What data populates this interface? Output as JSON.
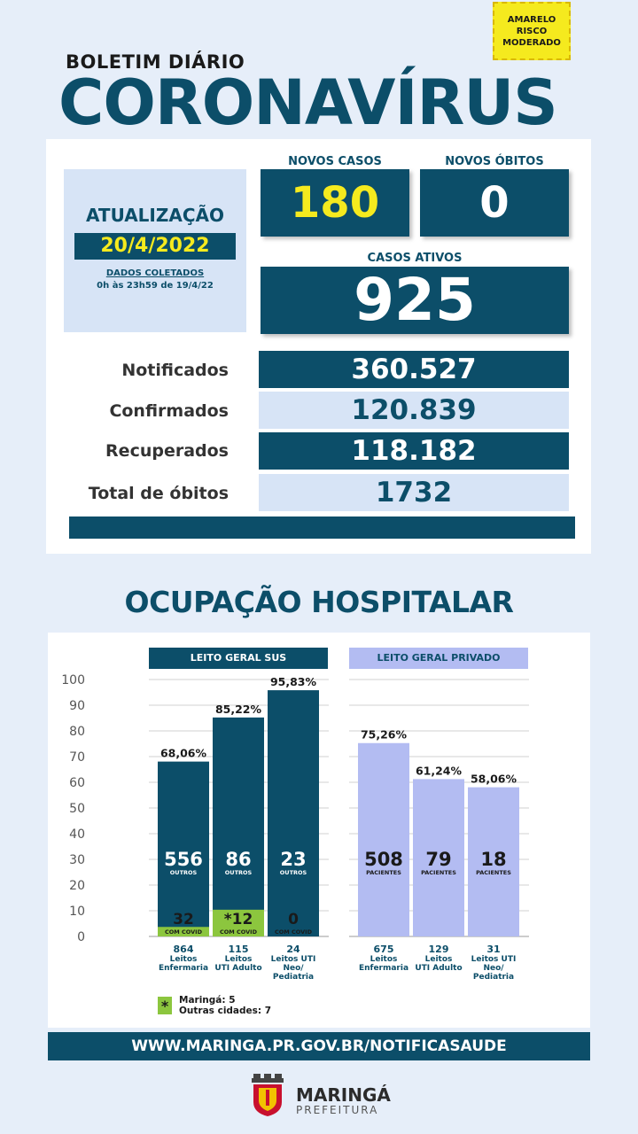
{
  "risk": {
    "line1": "AMARELO",
    "line2": "RISCO",
    "line3": "MODERADO",
    "color": "#f5ea1e"
  },
  "header": {
    "boletim": "BOLETIM DIÁRIO",
    "title": "CORONAVÍRUS"
  },
  "update": {
    "label": "ATUALIZAÇÃO",
    "date": "20/4/2022",
    "collected": "DADOS COLETADOS",
    "collected_period": "0h às 23h59 de 19/4/22"
  },
  "new_cases": {
    "label": "NOVOS CASOS",
    "value": "180"
  },
  "new_deaths": {
    "label": "NOVOS ÓBITOS",
    "value": "0"
  },
  "active": {
    "label": "CASOS ATIVOS",
    "value": "925"
  },
  "stats": [
    {
      "label": "Notificados",
      "value": "360.527"
    },
    {
      "label": "Confirmados",
      "value": "120.839"
    },
    {
      "label": "Recuperados",
      "value": "118.182"
    },
    {
      "label": "Total de óbitos",
      "value": "1732"
    }
  ],
  "hospital_title": "OCUPAÇÃO HOSPITALAR",
  "sus_header": "LEITO GERAL SUS",
  "priv_header": "LEITO GERAL PRIVADO",
  "legend": {
    "symbol": "*",
    "line1": "Maringá: 5",
    "line2": "Outras cidades: 7"
  },
  "footer": {
    "url": "WWW.MARINGA.PR.GOV.BR/NOTIFICASAUDE",
    "logo_name": "MARINGÁ",
    "logo_sub": "PREFEITURA"
  },
  "colors": {
    "primary": "#0c4e69",
    "accent": "#f5ea1e",
    "covid": "#8cc63e",
    "private": "#b3bcf2"
  },
  "chart_data": {
    "type": "bar",
    "ylim": [
      0,
      100
    ],
    "yticks": [
      "100",
      "90",
      "80",
      "70",
      "60",
      "50",
      "40",
      "30",
      "20",
      "10",
      "0"
    ],
    "groups": [
      {
        "name": "LEITO GERAL SUS",
        "bars": [
          {
            "percent": 68.06,
            "percent_label": "68,06%",
            "others": "556",
            "others_label": "OUTROS",
            "covid": "32",
            "covid_label": "COM COVID",
            "covid_pct": 3.7,
            "beds": "864",
            "beds_label": [
              "Leitos",
              "Enfermaria"
            ]
          },
          {
            "percent": 85.22,
            "percent_label": "85,22%",
            "others": "86",
            "others_label": "OUTROS",
            "covid": "*12",
            "covid_label": "COM COVID",
            "covid_pct": 10.4,
            "beds": "115",
            "beds_label": [
              "Leitos",
              "UTI Adulto"
            ]
          },
          {
            "percent": 95.83,
            "percent_label": "95,83%",
            "others": "23",
            "others_label": "OUTROS",
            "covid": "0",
            "covid_label": "COM COVID",
            "covid_pct": 0,
            "beds": "24",
            "beds_label": [
              "Leitos UTI",
              "Neo/",
              "Pediatria"
            ]
          }
        ]
      },
      {
        "name": "LEITO GERAL PRIVADO",
        "bars": [
          {
            "percent": 75.26,
            "percent_label": "75,26%",
            "others": "508",
            "others_label": "PACIENTES",
            "beds": "675",
            "beds_label": [
              "Leitos",
              "Enfermaria"
            ]
          },
          {
            "percent": 61.24,
            "percent_label": "61,24%",
            "others": "79",
            "others_label": "PACIENTES",
            "beds": "129",
            "beds_label": [
              "Leitos",
              "UTI Adulto"
            ]
          },
          {
            "percent": 58.06,
            "percent_label": "58,06%",
            "others": "18",
            "others_label": "PACIENTES",
            "beds": "31",
            "beds_label": [
              "Leitos UTI",
              "Neo/",
              "Pediatria"
            ]
          }
        ]
      }
    ]
  }
}
